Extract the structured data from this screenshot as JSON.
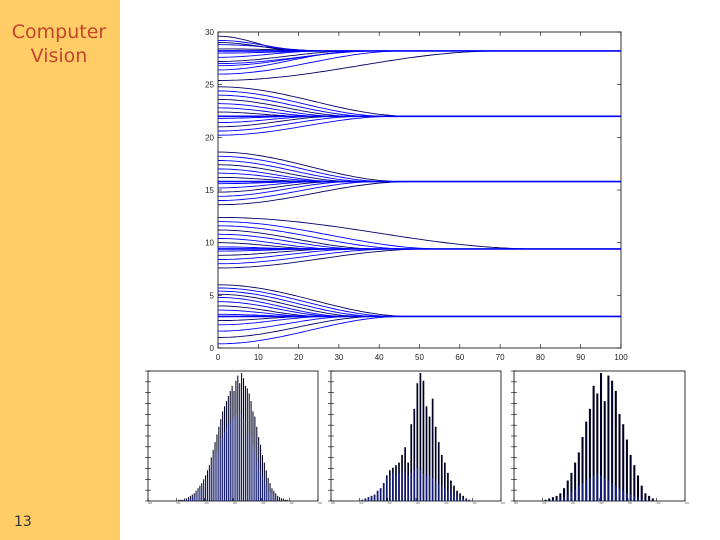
{
  "sidebar": {
    "course_title": "Computer\nVision",
    "slide_number": "13",
    "color": "#ffcc66",
    "title_color": "#c3462c"
  },
  "chart_data": [
    {
      "type": "line",
      "title": "",
      "xlabel": "",
      "ylabel": "",
      "xlim": [
        0,
        100
      ],
      "ylim": [
        0,
        30
      ],
      "xticks": [
        0,
        10,
        20,
        30,
        40,
        50,
        60,
        70,
        80,
        90,
        100
      ],
      "yticks": [
        0,
        5,
        10,
        15,
        20,
        25,
        30
      ],
      "grid": false,
      "line_color": "#0000ff",
      "clusters": [
        {
          "target": 28.2,
          "starts": [
            29.6,
            29.2,
            28.8,
            28.4,
            28.0,
            27.6,
            27.2,
            26.8,
            26.4,
            29.0,
            27.0,
            26.0,
            25.4
          ],
          "settle": [
            20,
            24,
            28,
            32,
            30,
            26,
            34,
            38,
            36,
            22,
            40,
            46,
            70
          ]
        },
        {
          "target": 22.0,
          "starts": [
            24.8,
            24.4,
            24.0,
            23.6,
            23.2,
            22.8,
            22.4,
            21.8,
            21.4,
            21.0,
            20.6,
            20.2
          ],
          "settle": [
            48,
            42,
            38,
            34,
            30,
            26,
            22,
            22,
            26,
            30,
            36,
            44
          ]
        },
        {
          "target": 15.8,
          "starts": [
            18.6,
            18.2,
            17.8,
            17.4,
            17.0,
            16.6,
            16.2,
            15.6,
            15.2,
            14.8,
            14.4,
            14.0,
            13.6
          ],
          "settle": [
            46,
            42,
            38,
            34,
            30,
            28,
            24,
            24,
            26,
            30,
            34,
            40,
            48
          ]
        },
        {
          "target": 9.4,
          "starts": [
            12.4,
            12.0,
            11.6,
            11.2,
            10.8,
            10.4,
            10.0,
            9.6,
            9.2,
            8.8,
            8.4,
            8.0,
            7.6
          ],
          "settle": [
            80,
            56,
            48,
            40,
            36,
            30,
            26,
            24,
            26,
            30,
            36,
            44,
            52
          ]
        },
        {
          "target": 3.0,
          "starts": [
            6.0,
            5.7,
            5.4,
            5.1,
            4.8,
            4.4,
            4.0,
            3.6,
            3.2,
            2.6,
            2.2,
            1.6,
            1.0,
            0.4
          ],
          "settle": [
            48,
            44,
            40,
            36,
            32,
            30,
            26,
            24,
            22,
            24,
            28,
            34,
            40,
            46
          ]
        }
      ]
    },
    {
      "type": "bar",
      "title": "",
      "xlabel": "",
      "ylabel": "",
      "values": [
        1,
        1,
        1,
        2,
        2,
        3,
        4,
        5,
        6,
        8,
        10,
        12,
        14,
        17,
        20,
        24,
        28,
        34,
        40,
        46,
        52,
        58,
        64,
        70,
        74,
        78,
        82,
        86,
        90,
        86,
        94,
        98,
        92,
        100,
        96,
        90,
        88,
        84,
        78,
        70,
        66,
        58,
        50,
        44,
        36,
        30,
        24,
        18,
        14,
        10,
        8,
        6,
        4,
        3,
        2,
        2,
        1,
        1
      ],
      "overlay": [
        0,
        0,
        0,
        0,
        1,
        1,
        2,
        3,
        4,
        5,
        7,
        9,
        11,
        13,
        16,
        18,
        22,
        26,
        30,
        34,
        38,
        42,
        46,
        50,
        54,
        58,
        60,
        62,
        64,
        66,
        68,
        66,
        70,
        68,
        64,
        62,
        58,
        54,
        50,
        44,
        40,
        34,
        30,
        24,
        20,
        16,
        12,
        9,
        7,
        5,
        4,
        3,
        2,
        1,
        1,
        0,
        0,
        0
      ]
    },
    {
      "type": "bar",
      "title": "",
      "xlabel": "",
      "ylabel": "",
      "values": [
        1,
        2,
        3,
        4,
        5,
        8,
        10,
        14,
        20,
        24,
        26,
        28,
        30,
        36,
        42,
        30,
        60,
        72,
        92,
        100,
        94,
        74,
        66,
        80,
        58,
        46,
        36,
        30,
        22,
        16,
        12,
        8,
        6,
        4,
        2,
        1
      ],
      "overlay": [
        1,
        2,
        3,
        4,
        5,
        8,
        10,
        14,
        18,
        20,
        22,
        20,
        22,
        24,
        22,
        20,
        22,
        24,
        26,
        24,
        22,
        20,
        20,
        18,
        16,
        14,
        12,
        10,
        8,
        6,
        5,
        4,
        3,
        2,
        1,
        1
      ]
    },
    {
      "type": "bar",
      "title": "",
      "xlabel": "",
      "ylabel": "",
      "values": [
        1,
        2,
        3,
        4,
        6,
        10,
        16,
        22,
        30,
        38,
        50,
        62,
        72,
        90,
        84,
        100,
        78,
        98,
        94,
        86,
        68,
        60,
        48,
        36,
        28,
        20,
        12,
        6,
        4,
        2
      ],
      "overlay": [
        0,
        0,
        1,
        1,
        2,
        3,
        5,
        7,
        9,
        12,
        14,
        16,
        18,
        20,
        22,
        20,
        18,
        16,
        14,
        12,
        10,
        8,
        6,
        5,
        4,
        3,
        2,
        1,
        1,
        0
      ]
    }
  ]
}
